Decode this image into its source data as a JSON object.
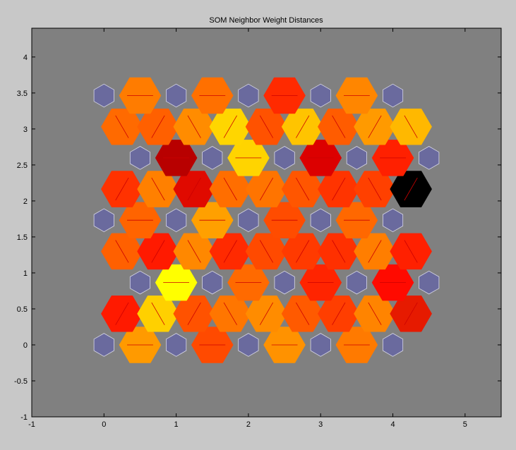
{
  "window": {
    "background": "#c8c8c8"
  },
  "chart_data": {
    "type": "heatmap",
    "title": "SOM Neighbor Weight Distances",
    "xlabel": "",
    "ylabel": "",
    "xlim": [
      -1,
      5.5
    ],
    "ylim": [
      -1,
      4.4
    ],
    "x_ticks": [
      "-1",
      "0",
      "1",
      "2",
      "3",
      "4",
      "5"
    ],
    "y_ticks": [
      "-1",
      "-0.5",
      "0",
      "0.5",
      "1",
      "1.5",
      "2",
      "2.5",
      "3",
      "3.5",
      "4"
    ],
    "axes_background": "#808080",
    "grid": false,
    "colors": {
      "neuron": "#6a6a9e",
      "neuron_edge": "#d8d8e8",
      "link_line": "#cc0000"
    },
    "neurons": [
      {
        "x": 0,
        "y": 0
      },
      {
        "x": 1,
        "y": 0
      },
      {
        "x": 2,
        "y": 0
      },
      {
        "x": 3,
        "y": 0
      },
      {
        "x": 4,
        "y": 0
      },
      {
        "x": 0.5,
        "y": 0.866
      },
      {
        "x": 1.5,
        "y": 0.866
      },
      {
        "x": 2.5,
        "y": 0.866
      },
      {
        "x": 3.5,
        "y": 0.866
      },
      {
        "x": 4.5,
        "y": 0.866
      },
      {
        "x": 0,
        "y": 1.732
      },
      {
        "x": 1,
        "y": 1.732
      },
      {
        "x": 2,
        "y": 1.732
      },
      {
        "x": 3,
        "y": 1.732
      },
      {
        "x": 4,
        "y": 1.732
      },
      {
        "x": 0.5,
        "y": 2.598
      },
      {
        "x": 1.5,
        "y": 2.598
      },
      {
        "x": 2.5,
        "y": 2.598
      },
      {
        "x": 3.5,
        "y": 2.598
      },
      {
        "x": 4.5,
        "y": 2.598
      },
      {
        "x": 0,
        "y": 3.464
      },
      {
        "x": 1,
        "y": 3.464
      },
      {
        "x": 2,
        "y": 3.464
      },
      {
        "x": 3,
        "y": 3.464
      },
      {
        "x": 4,
        "y": 3.464
      }
    ],
    "links": [
      {
        "x": 0.5,
        "y": 0,
        "a": 0,
        "color": "#ff9a00"
      },
      {
        "x": 1.5,
        "y": 0,
        "a": 0,
        "color": "#ff4a00"
      },
      {
        "x": 2.5,
        "y": 0,
        "a": 0,
        "color": "#ff9200"
      },
      {
        "x": 3.5,
        "y": 0,
        "a": 0,
        "color": "#ff7a00"
      },
      {
        "x": 0.25,
        "y": 0.433,
        "a": 60,
        "color": "#ff1a00"
      },
      {
        "x": 0.75,
        "y": 0.433,
        "a": 120,
        "color": "#ffd000"
      },
      {
        "x": 1.25,
        "y": 0.433,
        "a": 60,
        "color": "#ff5200"
      },
      {
        "x": 1.75,
        "y": 0.433,
        "a": 120,
        "color": "#ff7600"
      },
      {
        "x": 2.25,
        "y": 0.433,
        "a": 60,
        "color": "#ff8c00"
      },
      {
        "x": 2.75,
        "y": 0.433,
        "a": 120,
        "color": "#ff5a00"
      },
      {
        "x": 3.25,
        "y": 0.433,
        "a": 60,
        "color": "#ff3e00"
      },
      {
        "x": 3.75,
        "y": 0.433,
        "a": 120,
        "color": "#ff8400"
      },
      {
        "x": 4.25,
        "y": 0.433,
        "a": 60,
        "color": "#e61a00"
      },
      {
        "x": 1,
        "y": 0.866,
        "a": 0,
        "color": "#ffff00"
      },
      {
        "x": 2,
        "y": 0.866,
        "a": 0,
        "color": "#ff6a00"
      },
      {
        "x": 3,
        "y": 0.866,
        "a": 0,
        "color": "#ff2400"
      },
      {
        "x": 4,
        "y": 0.866,
        "a": 0,
        "color": "#ff0a00"
      },
      {
        "x": 0.25,
        "y": 1.299,
        "a": 120,
        "color": "#ff6000"
      },
      {
        "x": 0.75,
        "y": 1.299,
        "a": 60,
        "color": "#ff1a00"
      },
      {
        "x": 1.25,
        "y": 1.299,
        "a": 120,
        "color": "#ff8800"
      },
      {
        "x": 1.75,
        "y": 1.299,
        "a": 60,
        "color": "#ff2a00"
      },
      {
        "x": 2.25,
        "y": 1.299,
        "a": 120,
        "color": "#ff4a00"
      },
      {
        "x": 2.75,
        "y": 1.299,
        "a": 60,
        "color": "#ff3a00"
      },
      {
        "x": 3.25,
        "y": 1.299,
        "a": 120,
        "color": "#ff3000"
      },
      {
        "x": 3.75,
        "y": 1.299,
        "a": 60,
        "color": "#ff7e00"
      },
      {
        "x": 4.25,
        "y": 1.299,
        "a": 120,
        "color": "#ff2000"
      },
      {
        "x": 0.5,
        "y": 1.732,
        "a": 0,
        "color": "#ff6400"
      },
      {
        "x": 1.5,
        "y": 1.732,
        "a": 0,
        "color": "#ffa000"
      },
      {
        "x": 2.5,
        "y": 1.732,
        "a": 0,
        "color": "#ff4c00"
      },
      {
        "x": 3.5,
        "y": 1.732,
        "a": 0,
        "color": "#ff6800"
      },
      {
        "x": 0.25,
        "y": 2.165,
        "a": 60,
        "color": "#ff3200"
      },
      {
        "x": 0.75,
        "y": 2.165,
        "a": 120,
        "color": "#ff8000"
      },
      {
        "x": 1.25,
        "y": 2.165,
        "a": 60,
        "color": "#e00a00"
      },
      {
        "x": 1.75,
        "y": 2.165,
        "a": 120,
        "color": "#ff6e00"
      },
      {
        "x": 2.25,
        "y": 2.165,
        "a": 60,
        "color": "#ff7400"
      },
      {
        "x": 2.75,
        "y": 2.165,
        "a": 120,
        "color": "#ff5600"
      },
      {
        "x": 3.25,
        "y": 2.165,
        "a": 60,
        "color": "#ff3400"
      },
      {
        "x": 3.75,
        "y": 2.165,
        "a": 120,
        "color": "#ff4000"
      },
      {
        "x": 4.25,
        "y": 2.165,
        "a": 60,
        "color": "#000000"
      },
      {
        "x": 1,
        "y": 2.598,
        "a": 0,
        "color": "#b80000"
      },
      {
        "x": 2,
        "y": 2.598,
        "a": 0,
        "color": "#ffd400"
      },
      {
        "x": 3,
        "y": 2.598,
        "a": 0,
        "color": "#dc0000"
      },
      {
        "x": 4,
        "y": 2.598,
        "a": 0,
        "color": "#ff2000"
      },
      {
        "x": 0.25,
        "y": 3.031,
        "a": 120,
        "color": "#ff6a00"
      },
      {
        "x": 0.75,
        "y": 3.031,
        "a": 60,
        "color": "#ff6000"
      },
      {
        "x": 1.25,
        "y": 3.031,
        "a": 120,
        "color": "#ff8c00"
      },
      {
        "x": 1.75,
        "y": 3.031,
        "a": 60,
        "color": "#ffd600"
      },
      {
        "x": 2.25,
        "y": 3.031,
        "a": 120,
        "color": "#ff5200"
      },
      {
        "x": 2.75,
        "y": 3.031,
        "a": 60,
        "color": "#ffc400"
      },
      {
        "x": 3.25,
        "y": 3.031,
        "a": 120,
        "color": "#ff5c00"
      },
      {
        "x": 3.75,
        "y": 3.031,
        "a": 60,
        "color": "#ff9a00"
      },
      {
        "x": 4.25,
        "y": 3.031,
        "a": 120,
        "color": "#ffb800"
      },
      {
        "x": 0.5,
        "y": 3.464,
        "a": 0,
        "color": "#ff7c00"
      },
      {
        "x": 1.5,
        "y": 3.464,
        "a": 0,
        "color": "#ff7000"
      },
      {
        "x": 2.5,
        "y": 3.464,
        "a": 0,
        "color": "#ff2a00"
      },
      {
        "x": 3.5,
        "y": 3.464,
        "a": 0,
        "color": "#ff8600"
      }
    ]
  }
}
